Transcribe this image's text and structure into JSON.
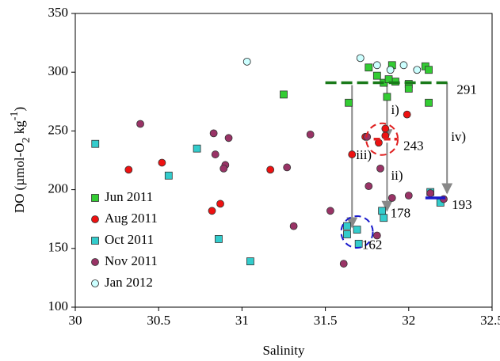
{
  "chart_data": {
    "type": "scatter",
    "xlabel": "Salinity",
    "ylabel_parts": [
      "DO (µmol-O",
      "2",
      " kg",
      "-1",
      ")"
    ],
    "xlim": [
      30,
      32.5
    ],
    "xticks": [
      30,
      30.5,
      31,
      31.5,
      32,
      32.5
    ],
    "ylim": [
      100,
      350
    ],
    "yticks": [
      100,
      150,
      200,
      250,
      300,
      350
    ],
    "grid": false,
    "legend": "lower left",
    "series": [
      {
        "name": "Jun 2011",
        "color": "#33cc33",
        "marker": "square",
        "x": [
          31.25,
          31.64,
          31.76,
          31.85,
          31.92,
          31.81,
          31.87,
          31.88,
          31.9,
          32.0,
          32.0,
          32.1,
          32.12,
          32.12
        ],
        "values": [
          281,
          274,
          304,
          291,
          292,
          297,
          279,
          294,
          306,
          290,
          286,
          305,
          302,
          274
        ]
      },
      {
        "name": "Aug 2011",
        "color": "#ee1111",
        "marker": "circle",
        "x": [
          30.32,
          30.52,
          30.82,
          30.87,
          31.17,
          31.66,
          31.74,
          31.82,
          31.86,
          31.86,
          31.99
        ],
        "values": [
          217,
          223,
          182,
          188,
          217,
          230,
          245,
          240,
          246,
          252,
          264
        ]
      },
      {
        "name": "Oct 2011",
        "color": "#33cccc",
        "marker": "square",
        "x": [
          30.12,
          30.56,
          30.73,
          30.86,
          31.05,
          31.63,
          31.63,
          31.69,
          31.7,
          31.84,
          31.85,
          32.13,
          32.19
        ],
        "values": [
          239,
          212,
          235,
          158,
          139,
          169,
          162,
          166,
          154,
          182,
          176,
          198,
          189
        ]
      },
      {
        "name": "Nov 2011",
        "color": "#993366",
        "marker": "circle",
        "x": [
          30.39,
          30.83,
          30.84,
          30.92,
          30.9,
          30.89,
          31.27,
          31.31,
          31.41,
          31.53,
          31.61,
          31.81,
          31.83,
          31.76,
          31.9,
          32.0,
          32.13,
          32.21,
          31.75
        ],
        "values": [
          256,
          248,
          230,
          244,
          221,
          218,
          219,
          169,
          247,
          182,
          137,
          161,
          218,
          203,
          193,
          195,
          197,
          192,
          245
        ]
      },
      {
        "name": "Jan 2012",
        "color": "#ccffff",
        "marker": "open-circle",
        "x": [
          31.03,
          31.71,
          31.81,
          31.89,
          31.97,
          32.05
        ],
        "values": [
          309,
          312,
          306,
          302,
          306,
          302
        ]
      }
    ],
    "reference_lines": [
      {
        "value": 291,
        "label": "291",
        "color": "#1a7a1a",
        "x": [
          31.5,
          32.25
        ]
      },
      {
        "value": 243,
        "label": "243",
        "color": "#e02020",
        "x": [
          31.79,
          31.93
        ]
      },
      {
        "value": 193,
        "label": "193",
        "color": "#1a1acc",
        "x": [
          32.1,
          32.22
        ]
      }
    ],
    "circles": [
      {
        "x": 31.84,
        "y": 243,
        "color": "#e02020"
      },
      {
        "x": 31.69,
        "y": 164,
        "color": "#1a1acc"
      }
    ],
    "labels": [
      {
        "text": "162",
        "x": 31.72,
        "y": 152,
        "color": "#1a1acc"
      },
      {
        "text": "178",
        "x": 31.89,
        "y": 179,
        "color": "#1a1acc"
      }
    ],
    "arrows": [
      {
        "label": "i)",
        "x": 31.87,
        "from": 291,
        "to": 243
      },
      {
        "label": "ii)",
        "x": 31.87,
        "from": 240,
        "to": 182
      },
      {
        "label": "iii)",
        "x": 31.66,
        "from": 289,
        "to": 168
      },
      {
        "label": "iv)",
        "x": 32.23,
        "from": 291,
        "to": 197
      }
    ]
  }
}
